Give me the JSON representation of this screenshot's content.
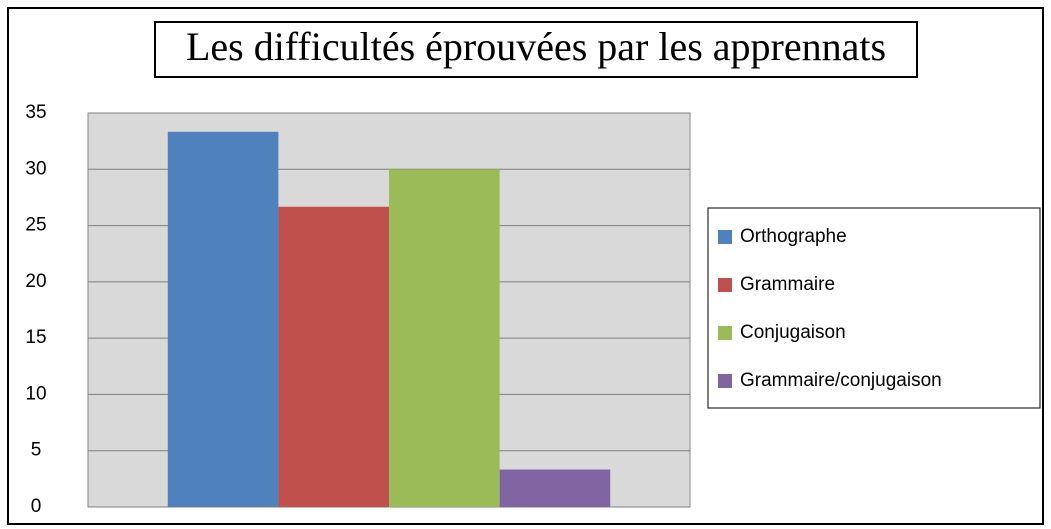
{
  "chart_data": {
    "type": "bar",
    "title": "Les difficultés éprouvées par les apprennats",
    "categories": [
      null
    ],
    "series": [
      {
        "name": "Orthographe",
        "color": "#4f81bd",
        "values": [
          33.33
        ]
      },
      {
        "name": "Grammaire",
        "color": "#c0504d",
        "values": [
          26.67
        ]
      },
      {
        "name": "Conjugaison",
        "color": "#9bbb59",
        "values": [
          30
        ]
      },
      {
        "name": "Grammaire/conjugaison",
        "color": "#8064a2",
        "values": [
          3.33
        ]
      }
    ],
    "ylim": [
      0,
      35
    ],
    "yticks": [
      0,
      5,
      10,
      15,
      20,
      25,
      30,
      35
    ],
    "grid": true,
    "legend": "right"
  }
}
